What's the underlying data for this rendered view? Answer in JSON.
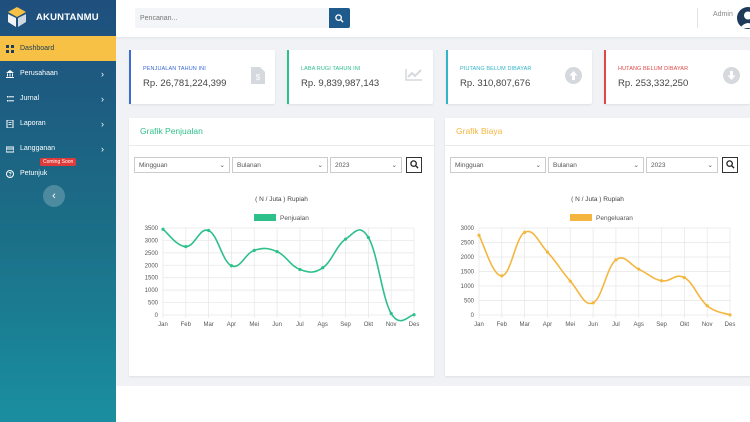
{
  "app": {
    "brand": "AKUNTANMU"
  },
  "sidebar": {
    "items": [
      {
        "label": "Dashboard",
        "icon": "dashboard-icon",
        "active": true
      },
      {
        "label": "Perusahaan",
        "icon": "building-icon",
        "chevron": true
      },
      {
        "label": "Jurnal",
        "icon": "journal-icon",
        "chevron": true
      },
      {
        "label": "Laporan",
        "icon": "report-icon",
        "chevron": true
      },
      {
        "label": "Langganan",
        "icon": "subscription-icon",
        "chevron": true,
        "badge": "Coming Soon"
      },
      {
        "label": "Petunjuk",
        "icon": "help-icon"
      }
    ],
    "collapse_icon": "chevron-left-icon"
  },
  "topbar": {
    "search_placeholder": "Pencarian...",
    "admin_label": "Admin"
  },
  "cards": [
    {
      "title": "PENJUALAN TAHUN INI",
      "value": "Rp. 26,781,224,399",
      "color": "#3f6bd6",
      "icon": "document-dollar-icon"
    },
    {
      "title": "LABA RUGI TAHUN INI",
      "value": "Rp. 9,839,987,143",
      "color": "#2ec08b",
      "icon": "trend-up-icon"
    },
    {
      "title": "PIUTANG BELUM DIBAYAR",
      "value": "Rp. 310,807,676",
      "color": "#33b5c9",
      "icon": "arrow-up-circle-icon"
    },
    {
      "title": "HUTANG BELUM DIBAYAR",
      "value": "Rp. 253,332,250",
      "color": "#e04848",
      "icon": "arrow-down-circle-icon"
    }
  ],
  "panels": [
    {
      "title": "Grafik Penjualan",
      "color": "#2ec08b",
      "filters": [
        "Mingguan",
        "Bulanan",
        "2023"
      ]
    },
    {
      "title": "Grafik Biaya",
      "color": "#f4b63f",
      "filters": [
        "Mingguan",
        "Bulanan",
        "2023"
      ]
    }
  ],
  "chart_data": [
    {
      "type": "line",
      "title": "( N / Juta ) Rupiah",
      "categories": [
        "Jan",
        "Feb",
        "Mar",
        "Apr",
        "Mei",
        "Jun",
        "Jul",
        "Ags",
        "Sep",
        "Okt",
        "Nov",
        "Des"
      ],
      "series": [
        {
          "name": "Penjualan",
          "color": "#2ec08b",
          "values": [
            3450,
            2750,
            3400,
            1980,
            2600,
            2550,
            1830,
            1900,
            3050,
            3120,
            60,
            10
          ]
        }
      ],
      "ylim": [
        0,
        3500
      ],
      "yticks": [
        0,
        500,
        1000,
        1500,
        2000,
        2500,
        3000,
        3500
      ],
      "grid": true,
      "legend": "top-center"
    },
    {
      "type": "line",
      "title": "( N / Juta ) Rupiah",
      "categories": [
        "Jan",
        "Feb",
        "Mar",
        "Apr",
        "Mei",
        "Jun",
        "Jul",
        "Ags",
        "Sep",
        "Okt",
        "Nov",
        "Des"
      ],
      "series": [
        {
          "name": "Pengeluaran",
          "color": "#f4b63f",
          "values": [
            2750,
            1350,
            2850,
            2170,
            1170,
            420,
            1900,
            1580,
            1180,
            1290,
            320,
            5
          ]
        }
      ],
      "ylim": [
        0,
        3000
      ],
      "yticks": [
        0,
        500,
        1000,
        1500,
        2000,
        2500,
        3000
      ],
      "grid": true,
      "legend": "top-center"
    }
  ]
}
